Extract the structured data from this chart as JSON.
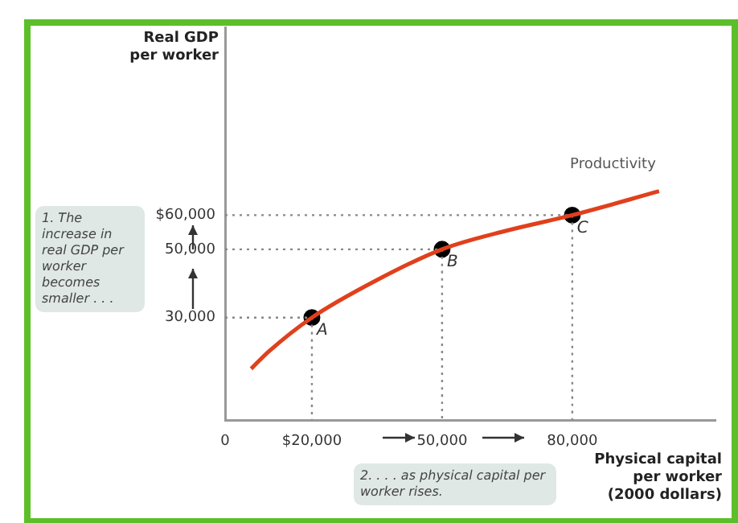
{
  "chart_data": {
    "type": "line",
    "ylabel": "Real GDP per worker",
    "xlabel": "Physical capital per worker (2000 dollars)",
    "xlim": [
      0,
      113000
    ],
    "ylim": [
      0,
      115000
    ],
    "xticks": [
      0,
      {
        "value": 20000,
        "label": "$20,000"
      },
      {
        "value": 50000,
        "label": "50,000"
      },
      {
        "value": 80000,
        "label": "80,000"
      }
    ],
    "yticks": [
      {
        "value": 30000,
        "label": "30,000"
      },
      {
        "value": 50000,
        "label": "50,000"
      },
      {
        "value": 60000,
        "label": "$60,000"
      }
    ],
    "grid": false,
    "legend": false,
    "series": [
      {
        "name": "Productivity",
        "color": "#e0401c",
        "marker": "none",
        "x": [
          6000,
          10000,
          20000,
          35000,
          50000,
          65000,
          80000,
          100000
        ],
        "values": [
          15000,
          20000,
          30000,
          41000,
          50000,
          55500,
          60000,
          67000
        ]
      },
      {
        "line_style": "dotted",
        "color": "#888888",
        "marker": "none",
        "x": [
          0,
          20000,
          20000
        ],
        "values": [
          30000,
          30000,
          0
        ]
      },
      {
        "line_style": "dotted",
        "color": "#888888",
        "marker": "none",
        "x": [
          0,
          50000,
          50000
        ],
        "values": [
          50000,
          50000,
          0
        ]
      },
      {
        "line_style": "dotted",
        "color": "#888888",
        "marker": "none",
        "x": [
          0,
          80000,
          80000
        ],
        "values": [
          60000,
          60000,
          0
        ]
      },
      {
        "type": "scatter",
        "color": "#000000",
        "marker": "circle",
        "x": [
          20000,
          50000,
          80000
        ],
        "values": [
          30000,
          50000,
          60000
        ]
      }
    ],
    "annotations": [
      {
        "text": "A",
        "x": 20000,
        "y": 30000
      },
      {
        "text": "B",
        "x": 50000,
        "y": 50000
      },
      {
        "text": "C",
        "x": 80000,
        "y": 60000
      },
      "1. The increase in real GDP per worker becomes smaller . . .",
      "2. . . . as physical capital per worker rises."
    ]
  }
}
